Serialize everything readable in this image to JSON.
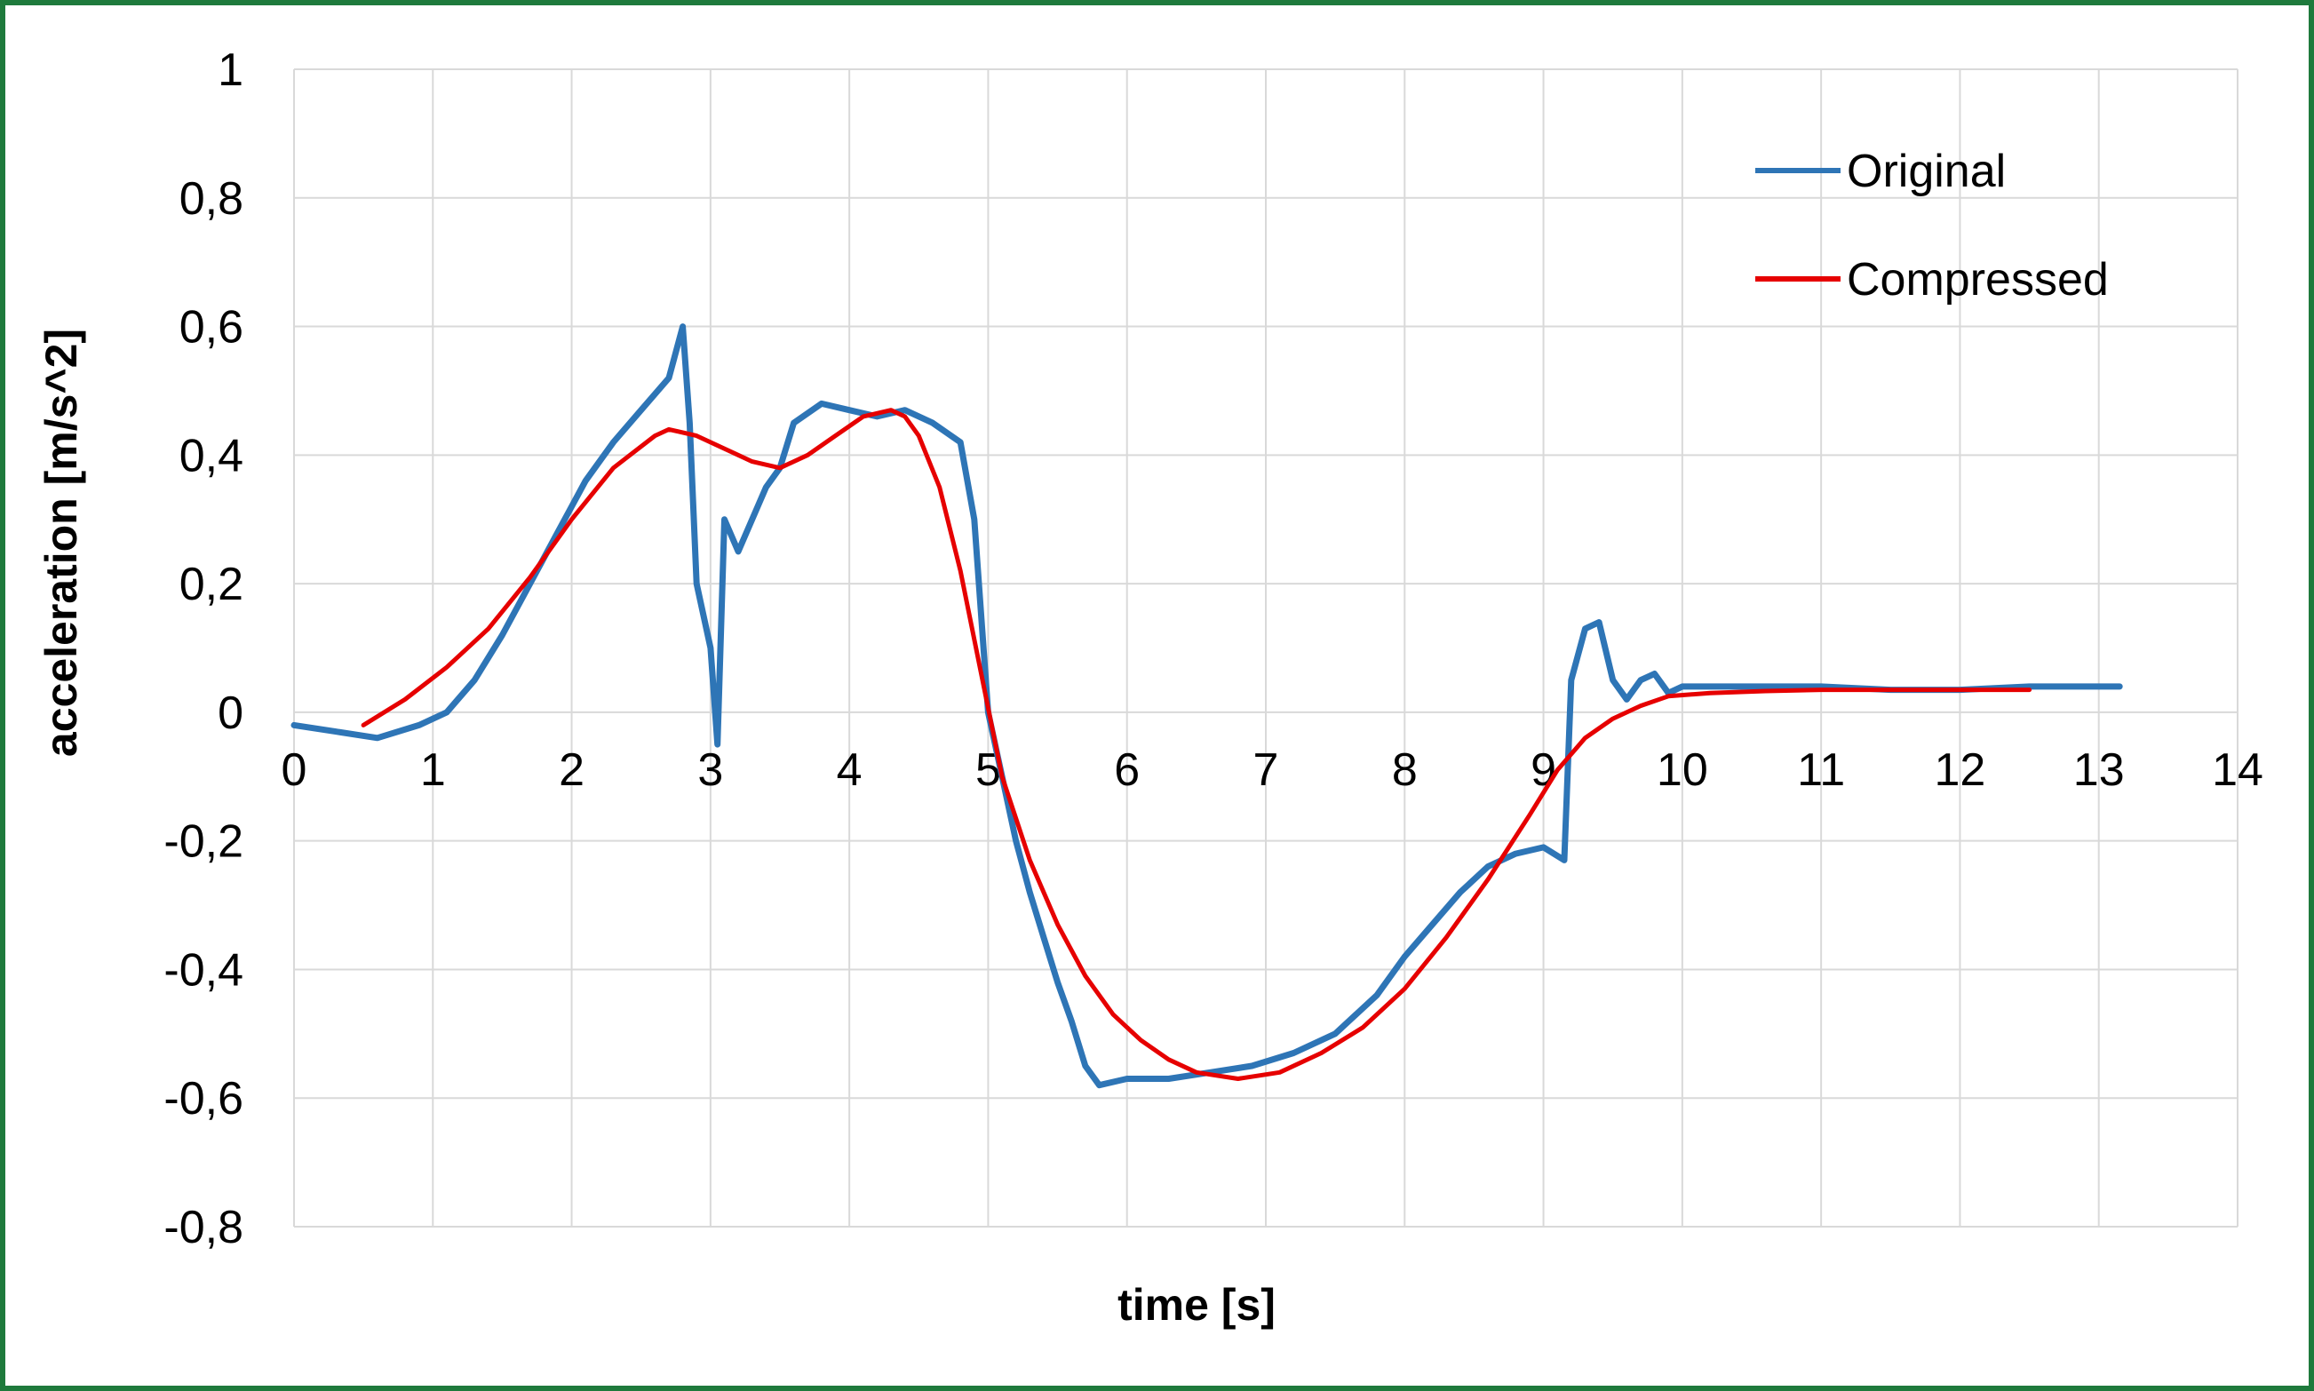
{
  "colors": {
    "frame": "#1e7a3c",
    "grid": "#d9d9d9",
    "original": "#2e75b6",
    "compressed": "#e60000"
  },
  "chart_data": {
    "type": "line",
    "title": "",
    "xlabel": "time [s]",
    "ylabel": "acceleration [m/s^2]",
    "xlim": [
      0,
      14
    ],
    "ylim": [
      -0.8,
      1
    ],
    "x_ticks": [
      0,
      1,
      2,
      3,
      4,
      5,
      6,
      7,
      8,
      9,
      10,
      11,
      12,
      13,
      14
    ],
    "y_ticks": [
      1,
      0.8,
      0.6,
      0.4,
      0.2,
      0,
      -0.2,
      -0.4,
      -0.6,
      -0.8
    ],
    "x_tick_labels": [
      "0",
      "1",
      "2",
      "3",
      "4",
      "5",
      "6",
      "7",
      "8",
      "9",
      "10",
      "11",
      "12",
      "13",
      "14"
    ],
    "y_tick_labels": [
      "1",
      "0,8",
      "0,6",
      "0,4",
      "0,2",
      "0",
      "-0,2",
      "-0,4",
      "-0,6",
      "-0,8"
    ],
    "grid": true,
    "legend_position": "top-right",
    "series": [
      {
        "name": "Original",
        "color": "#2e75b6",
        "x": [
          0,
          0.3,
          0.6,
          0.9,
          1.1,
          1.3,
          1.5,
          1.7,
          1.9,
          2.1,
          2.3,
          2.5,
          2.7,
          2.8,
          2.85,
          2.9,
          3.0,
          3.05,
          3.1,
          3.2,
          3.4,
          3.5,
          3.6,
          3.8,
          4.0,
          4.2,
          4.4,
          4.6,
          4.8,
          4.9,
          5.0,
          5.1,
          5.2,
          5.3,
          5.4,
          5.5,
          5.6,
          5.7,
          5.8,
          6.0,
          6.3,
          6.6,
          6.9,
          7.2,
          7.5,
          7.8,
          8.0,
          8.2,
          8.4,
          8.6,
          8.8,
          9.0,
          9.15,
          9.2,
          9.3,
          9.4,
          9.5,
          9.6,
          9.7,
          9.8,
          9.9,
          10.0,
          10.5,
          11.0,
          11.5,
          12.0,
          12.5,
          13.0,
          13.15
        ],
        "y": [
          -0.02,
          -0.03,
          -0.04,
          -0.02,
          0.0,
          0.05,
          0.12,
          0.2,
          0.28,
          0.36,
          0.42,
          0.47,
          0.52,
          0.6,
          0.45,
          0.2,
          0.1,
          -0.05,
          0.3,
          0.25,
          0.35,
          0.38,
          0.45,
          0.48,
          0.47,
          0.46,
          0.47,
          0.45,
          0.42,
          0.3,
          0.0,
          -0.1,
          -0.2,
          -0.28,
          -0.35,
          -0.42,
          -0.48,
          -0.55,
          -0.58,
          -0.57,
          -0.57,
          -0.56,
          -0.55,
          -0.53,
          -0.5,
          -0.44,
          -0.38,
          -0.33,
          -0.28,
          -0.24,
          -0.22,
          -0.21,
          -0.23,
          0.05,
          0.13,
          0.14,
          0.05,
          0.02,
          0.05,
          0.06,
          0.03,
          0.04,
          0.04,
          0.04,
          0.035,
          0.035,
          0.04,
          0.04,
          0.04
        ]
      },
      {
        "name": "Compressed",
        "color": "#e60000",
        "x": [
          0.5,
          0.8,
          1.1,
          1.4,
          1.7,
          2.0,
          2.3,
          2.6,
          2.7,
          2.9,
          3.1,
          3.3,
          3.5,
          3.7,
          3.9,
          4.1,
          4.3,
          4.4,
          4.5,
          4.65,
          4.8,
          4.95,
          5.1,
          5.3,
          5.5,
          5.7,
          5.9,
          6.1,
          6.3,
          6.5,
          6.8,
          7.1,
          7.4,
          7.7,
          8.0,
          8.3,
          8.6,
          8.9,
          9.1,
          9.3,
          9.5,
          9.7,
          9.9,
          10.2,
          10.6,
          11.0,
          11.5,
          12.0,
          12.5
        ],
        "y": [
          -0.02,
          0.02,
          0.07,
          0.13,
          0.21,
          0.3,
          0.38,
          0.43,
          0.44,
          0.43,
          0.41,
          0.39,
          0.38,
          0.4,
          0.43,
          0.46,
          0.47,
          0.46,
          0.43,
          0.35,
          0.22,
          0.06,
          -0.1,
          -0.23,
          -0.33,
          -0.41,
          -0.47,
          -0.51,
          -0.54,
          -0.56,
          -0.57,
          -0.56,
          -0.53,
          -0.49,
          -0.43,
          -0.35,
          -0.26,
          -0.16,
          -0.09,
          -0.04,
          -0.01,
          0.01,
          0.025,
          0.03,
          0.033,
          0.035,
          0.035,
          0.035,
          0.035
        ]
      }
    ]
  }
}
